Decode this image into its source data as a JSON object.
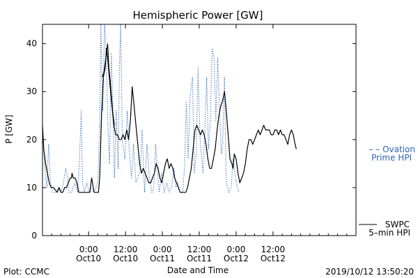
{
  "chart_data": {
    "type": "line",
    "title": "Hemispheric Power [GW]",
    "xlabel": "Date and Time",
    "ylabel": "P [GW]",
    "ylim": [
      0,
      44
    ],
    "xlim_hours": [
      -15,
      87
    ],
    "y_ticks": [
      0,
      10,
      20,
      30,
      40
    ],
    "x_ticks": [
      {
        "hour": 0,
        "time": "0:00",
        "date": "Oct10"
      },
      {
        "hour": 12,
        "time": "12:00",
        "date": "Oct10"
      },
      {
        "hour": 24,
        "time": "0:00",
        "date": "Oct11"
      },
      {
        "hour": 36,
        "time": "12:00",
        "date": "Oct11"
      },
      {
        "hour": 48,
        "time": "0:00",
        "date": "Oct12"
      },
      {
        "hour": 60,
        "time": "12:00",
        "date": "Oct12"
      }
    ],
    "series": [
      {
        "name": "– Ovation Prime HPI",
        "legend_line1": "– – Ovation",
        "legend_line2": "Prime HPI",
        "color": "#2b63b8",
        "style": "dotted",
        "points": [
          [
            -15,
            22
          ],
          [
            -14.2,
            14
          ],
          [
            -13.6,
            10
          ],
          [
            -13,
            19
          ],
          [
            -12.4,
            11
          ],
          [
            -11.6,
            9
          ],
          [
            -10.6,
            9
          ],
          [
            -9.8,
            10
          ],
          [
            -9,
            9
          ],
          [
            -8.2,
            11
          ],
          [
            -7.4,
            14
          ],
          [
            -6.8,
            12
          ],
          [
            -6.4,
            9
          ],
          [
            -5.6,
            9
          ],
          [
            -5,
            10
          ],
          [
            -4.4,
            11
          ],
          [
            -3.6,
            9
          ],
          [
            -3,
            15
          ],
          [
            -2.4,
            26
          ],
          [
            -2,
            11
          ],
          [
            -1.4,
            9
          ],
          [
            -0.6,
            11
          ],
          [
            0.2,
            9
          ],
          [
            0.8,
            10
          ],
          [
            1.6,
            9
          ],
          [
            2.4,
            10
          ],
          [
            3,
            11
          ],
          [
            3.6,
            23
          ],
          [
            4,
            44
          ],
          [
            4.6,
            26
          ],
          [
            5.2,
            44
          ],
          [
            5.8,
            37
          ],
          [
            6.2,
            24
          ],
          [
            6.8,
            15
          ],
          [
            7.4,
            38
          ],
          [
            7.8,
            29
          ],
          [
            8.4,
            12
          ],
          [
            9,
            26
          ],
          [
            9.6,
            14
          ],
          [
            10,
            34
          ],
          [
            10.4,
            44
          ],
          [
            11,
            20
          ],
          [
            11.8,
            16
          ],
          [
            12.6,
            26
          ],
          [
            13.2,
            18
          ],
          [
            14,
            12
          ],
          [
            14.6,
            19
          ],
          [
            15.4,
            11
          ],
          [
            16,
            12
          ],
          [
            16.8,
            14
          ],
          [
            17.4,
            22
          ],
          [
            18.2,
            9
          ],
          [
            19,
            19
          ],
          [
            19.8,
            12
          ],
          [
            20.6,
            9
          ],
          [
            21.2,
            10
          ],
          [
            21.8,
            19
          ],
          [
            22.4,
            13
          ],
          [
            23,
            9
          ],
          [
            23.8,
            13
          ],
          [
            24.6,
            9
          ],
          [
            25.4,
            11
          ],
          [
            26.2,
            9
          ],
          [
            27,
            10
          ],
          [
            27.8,
            14
          ],
          [
            28.4,
            10
          ],
          [
            29,
            11
          ],
          [
            29.8,
            9
          ],
          [
            30.6,
            9
          ],
          [
            31.2,
            14
          ],
          [
            31.8,
            28
          ],
          [
            32.4,
            16
          ],
          [
            33,
            29
          ],
          [
            33.8,
            33
          ],
          [
            34.4,
            13
          ],
          [
            35,
            17
          ],
          [
            35.6,
            35
          ],
          [
            36.2,
            21
          ],
          [
            36.8,
            16
          ],
          [
            37.2,
            13
          ],
          [
            37.8,
            21
          ],
          [
            38.4,
            33
          ],
          [
            39,
            18
          ],
          [
            39.6,
            24
          ],
          [
            40.2,
            39
          ],
          [
            40.8,
            37
          ],
          [
            41.4,
            24
          ],
          [
            42,
            37
          ],
          [
            42.6,
            26
          ],
          [
            43.2,
            17
          ],
          [
            43.6,
            19
          ],
          [
            44.2,
            33
          ],
          [
            44.8,
            11
          ],
          [
            45.6,
            9
          ],
          [
            46.4,
            10
          ],
          [
            47,
            16
          ],
          [
            47.8,
            12
          ],
          [
            48.4,
            10
          ],
          [
            49,
            9
          ]
        ]
      },
      {
        "name": "SWPC 5–min HPI",
        "legend_line1": "SWPC",
        "legend_line2": "5–min HPI",
        "color": "#000000",
        "style": "solid",
        "points": [
          [
            -15,
            23
          ],
          [
            -14.6,
            18
          ],
          [
            -14,
            15
          ],
          [
            -13.4,
            13
          ],
          [
            -12.8,
            11
          ],
          [
            -12.2,
            10
          ],
          [
            -11.4,
            10
          ],
          [
            -10.8,
            9.5
          ],
          [
            -10.2,
            9
          ],
          [
            -9.6,
            10
          ],
          [
            -9,
            9
          ],
          [
            -8.4,
            9
          ],
          [
            -7.8,
            10
          ],
          [
            -7.2,
            10
          ],
          [
            -6.6,
            11
          ],
          [
            -6,
            12
          ],
          [
            -5.6,
            12
          ],
          [
            -5.4,
            13
          ],
          [
            -5,
            12
          ],
          [
            -4.4,
            12
          ],
          [
            -3.8,
            11
          ],
          [
            -3.2,
            9
          ],
          [
            -2.4,
            9
          ],
          [
            -1.8,
            9
          ],
          [
            -1.2,
            9
          ],
          [
            -0.6,
            9
          ],
          [
            0,
            9
          ],
          [
            0.4,
            9
          ],
          [
            1,
            12
          ],
          [
            1.8,
            9
          ],
          [
            2.6,
            9
          ],
          [
            3.2,
            9
          ],
          [
            3.6,
            12
          ],
          [
            4.2,
            25
          ],
          [
            4.8,
            33
          ],
          [
            5.4,
            35
          ],
          [
            5.8,
            39
          ],
          [
            6.2,
            37
          ],
          [
            6.6,
            34
          ],
          [
            7,
            31
          ],
          [
            7.6,
            27
          ],
          [
            8.2,
            23
          ],
          [
            8.8,
            21
          ],
          [
            9.4,
            21
          ],
          [
            10,
            20
          ],
          [
            10.6,
            20
          ],
          [
            11.2,
            21
          ],
          [
            11.8,
            20
          ],
          [
            12.4,
            22
          ],
          [
            13,
            20
          ],
          [
            13.6,
            24
          ],
          [
            14.2,
            31
          ],
          [
            14.8,
            27
          ],
          [
            15.4,
            23
          ],
          [
            16,
            19
          ],
          [
            16.6,
            15
          ],
          [
            17.2,
            13
          ],
          [
            17.8,
            14
          ],
          [
            18.4,
            13
          ],
          [
            19,
            12
          ],
          [
            19.6,
            11
          ],
          [
            20.2,
            11
          ],
          [
            20.8,
            12
          ],
          [
            21.4,
            13
          ],
          [
            22,
            15
          ],
          [
            22.6,
            14
          ],
          [
            23.2,
            12
          ],
          [
            23.8,
            11
          ],
          [
            24.4,
            13
          ],
          [
            25,
            15
          ],
          [
            25.6,
            16
          ],
          [
            26.2,
            14
          ],
          [
            26.8,
            15
          ],
          [
            27.4,
            14
          ],
          [
            28,
            12
          ],
          [
            28.6,
            11
          ],
          [
            29.2,
            10
          ],
          [
            29.8,
            9
          ],
          [
            30.4,
            9
          ],
          [
            31,
            9
          ],
          [
            31.6,
            9
          ],
          [
            32.2,
            10
          ],
          [
            32.8,
            12
          ],
          [
            33.4,
            14
          ],
          [
            34,
            18
          ],
          [
            34.6,
            22
          ],
          [
            35.2,
            23
          ],
          [
            35.8,
            22
          ],
          [
            36.4,
            21
          ],
          [
            37,
            22
          ],
          [
            37.6,
            21
          ],
          [
            38.2,
            19
          ],
          [
            38.8,
            16
          ],
          [
            39.4,
            14
          ],
          [
            40,
            14
          ],
          [
            40.6,
            16
          ],
          [
            41.2,
            18
          ],
          [
            41.8,
            22
          ],
          [
            42.4,
            25
          ],
          [
            43,
            27
          ],
          [
            43.6,
            28
          ],
          [
            44.2,
            30
          ],
          [
            44.8,
            26
          ],
          [
            45.4,
            21
          ],
          [
            46,
            16
          ],
          [
            46.6,
            15
          ],
          [
            47,
            14
          ],
          [
            47.4,
            17
          ],
          [
            48,
            16
          ],
          [
            48.6,
            13
          ],
          [
            49.2,
            11
          ],
          [
            49.8,
            12
          ],
          [
            50.4,
            13
          ],
          [
            51,
            15
          ],
          [
            51.6,
            18
          ],
          [
            52.2,
            20
          ],
          [
            52.8,
            20
          ],
          [
            53.4,
            19
          ],
          [
            54,
            20
          ],
          [
            54.6,
            21
          ],
          [
            55.2,
            22
          ],
          [
            55.8,
            21
          ],
          [
            56.4,
            22
          ],
          [
            57,
            23
          ],
          [
            57.6,
            22
          ],
          [
            58.2,
            22
          ],
          [
            58.8,
            22
          ],
          [
            59.4,
            21
          ],
          [
            60,
            21
          ],
          [
            60.6,
            22
          ],
          [
            61.2,
            22
          ],
          [
            61.8,
            21
          ],
          [
            62.4,
            22
          ],
          [
            63,
            21
          ],
          [
            63.6,
            21
          ],
          [
            64.2,
            20
          ],
          [
            64.8,
            19
          ],
          [
            65.4,
            21
          ],
          [
            66,
            22
          ],
          [
            66.6,
            21
          ],
          [
            67.2,
            19
          ],
          [
            67.6,
            18
          ]
        ]
      }
    ],
    "extra_segments": [
      [
        [
          4.4,
          33
        ],
        [
          5,
          34
        ],
        [
          5.6,
          37
        ],
        [
          6.2,
          40
        ],
        [
          6.6,
          35
        ],
        [
          7.2,
          31
        ],
        [
          7.8,
          26
        ],
        [
          8.4,
          23
        ]
      ]
    ],
    "footer_left": "Plot: CCMC",
    "footer_right": "2019/10/12 13:50:20"
  }
}
